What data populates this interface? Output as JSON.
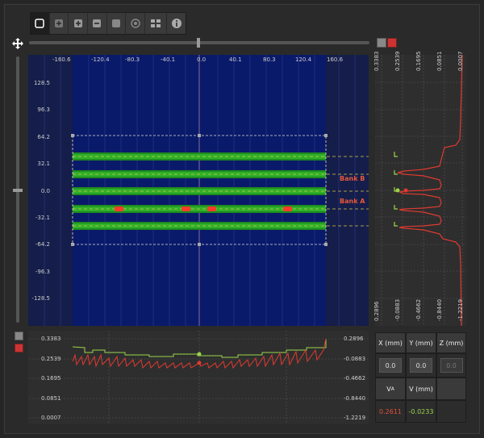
{
  "toolbar": {
    "buttons": [
      "select-box-icon",
      "zoom-in-box-icon",
      "plus-box-icon",
      "minus-box-icon",
      "square-icon",
      "target-icon",
      "grid-icon",
      "info-icon"
    ]
  },
  "main_plot": {
    "x_ticks": [
      "-160.6",
      "-120.4",
      "-80.3",
      "-40.1",
      "0.0",
      "40.1",
      "80.3",
      "120.4",
      "160.6"
    ],
    "y_ticks": [
      "128.5",
      "96.3",
      "64.2",
      "32.1",
      "0.0",
      "-32.1",
      "-64.2",
      "-96.3",
      "-128.5"
    ],
    "bank_b_label": "Bank B",
    "bank_a_label": "Bank A"
  },
  "right_profile": {
    "top_ticks": [
      "0.3383",
      "0.2539",
      "0.1695",
      "0.0851",
      "0.0007"
    ],
    "bottom_ticks": [
      "0.2896",
      "-0.0883",
      "-0.4662",
      "-0.8440",
      "-1.2219"
    ]
  },
  "bottom_profile": {
    "left_ticks": [
      "0.3383",
      "0.2539",
      "0.1695",
      "0.0851",
      "0.0007"
    ],
    "right_ticks": [
      "0.2896",
      "-0.0883",
      "-0.4662",
      "-0.8440",
      "-1.2219"
    ]
  },
  "readout": {
    "x_header": "X (mm)",
    "y_header": "Y (mm)",
    "z_header": "Z (mm)",
    "x_value": "0.0",
    "y_value": "0.0",
    "z_value": "0.0",
    "va_header": "V",
    "va_sub": "A",
    "v_header": "V (mm)",
    "va_value": "0.2611",
    "v_value": "-0.0233"
  },
  "colors": {
    "accent_green": "#9bd54b",
    "accent_red": "#e03a30",
    "plot_bg": "#0a1a6a"
  }
}
